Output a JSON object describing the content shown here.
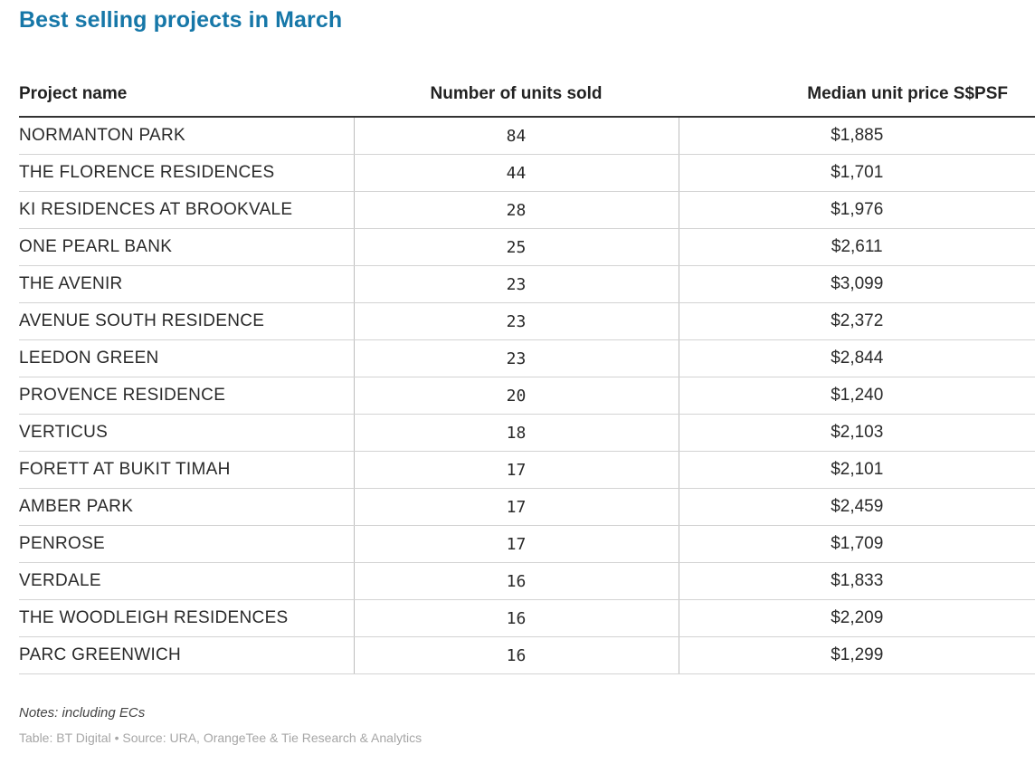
{
  "title": "Best selling projects in March",
  "headers": {
    "project_name": "Project name",
    "units_sold": "Number of units sold",
    "median_price": "Median unit price S$PSF"
  },
  "rows": [
    {
      "name": "NORMANTON PARK",
      "units": "84",
      "price": "$1,885"
    },
    {
      "name": "THE FLORENCE RESIDENCES",
      "units": "44",
      "price": "$1,701"
    },
    {
      "name": "KI RESIDENCES AT BROOKVALE",
      "units": "28",
      "price": "$1,976"
    },
    {
      "name": "ONE PEARL BANK",
      "units": "25",
      "price": "$2,611"
    },
    {
      "name": "THE AVENIR",
      "units": "23",
      "price": "$3,099"
    },
    {
      "name": "AVENUE SOUTH RESIDENCE",
      "units": "23",
      "price": "$2,372"
    },
    {
      "name": "LEEDON GREEN",
      "units": "23",
      "price": "$2,844"
    },
    {
      "name": "PROVENCE RESIDENCE",
      "units": "20",
      "price": "$1,240"
    },
    {
      "name": "VERTICUS",
      "units": "18",
      "price": "$2,103"
    },
    {
      "name": "FORETT AT BUKIT TIMAH",
      "units": "17",
      "price": "$2,101"
    },
    {
      "name": "AMBER PARK",
      "units": "17",
      "price": "$2,459"
    },
    {
      "name": "PENROSE",
      "units": "17",
      "price": "$1,709"
    },
    {
      "name": "VERDALE",
      "units": "16",
      "price": "$1,833"
    },
    {
      "name": "THE WOODLEIGH RESIDENCES",
      "units": "16",
      "price": "$2,209"
    },
    {
      "name": "PARC GREENWICH",
      "units": "16",
      "price": "$1,299"
    }
  ],
  "notes": "Notes: including ECs",
  "source": "Table: BT Digital • Source: URA, OrangeTee & Tie Research & Analytics",
  "colors": {
    "title": "#1677a8",
    "source": "#a6a6a6"
  },
  "chart_data": {
    "type": "table",
    "title": "Best selling projects in March",
    "columns": [
      "Project name",
      "Number of units sold",
      "Median unit price S$PSF"
    ],
    "rows": [
      [
        "NORMANTON PARK",
        84,
        1885
      ],
      [
        "THE FLORENCE RESIDENCES",
        44,
        1701
      ],
      [
        "KI RESIDENCES AT BROOKVALE",
        28,
        1976
      ],
      [
        "ONE PEARL BANK",
        25,
        2611
      ],
      [
        "THE AVENIR",
        23,
        3099
      ],
      [
        "AVENUE SOUTH RESIDENCE",
        23,
        2372
      ],
      [
        "LEEDON GREEN",
        23,
        2844
      ],
      [
        "PROVENCE RESIDENCE",
        20,
        1240
      ],
      [
        "VERTICUS",
        18,
        2103
      ],
      [
        "FORETT AT BUKIT TIMAH",
        17,
        2101
      ],
      [
        "AMBER PARK",
        17,
        2459
      ],
      [
        "PENROSE",
        17,
        1709
      ],
      [
        "VERDALE",
        16,
        1833
      ],
      [
        "THE WOODLEIGH RESIDENCES",
        16,
        2209
      ],
      [
        "PARC GREENWICH",
        16,
        1299
      ]
    ]
  }
}
